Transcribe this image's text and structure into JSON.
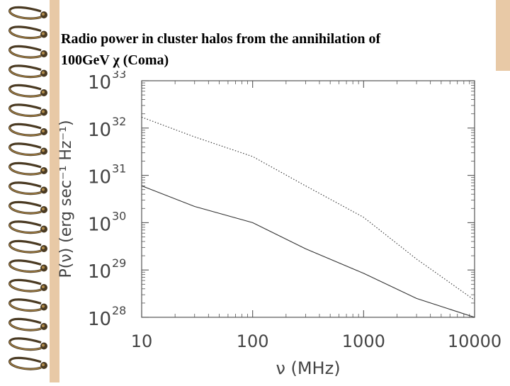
{
  "slide": {
    "title_line1": "Radio power in cluster halos from the annihilation of",
    "title_line2": "100GeV χ (Coma)"
  },
  "colors": {
    "accent_bar": "#e8c9a6",
    "coil_dark": "#4a3a22",
    "coil_light": "#b08a4a",
    "curve": "#333333"
  },
  "chart_data": {
    "type": "line",
    "x_scale": "log",
    "y_scale": "log",
    "xlim": [
      10,
      10000
    ],
    "ylim": [
      1e+28,
      1e+33
    ],
    "xlabel": "ν (MHz)",
    "ylabel": "P(ν) (erg sec⁻¹ Hz⁻¹)",
    "x_ticks": [
      {
        "value": 10,
        "label": "10"
      },
      {
        "value": 100,
        "label": "100"
      },
      {
        "value": 1000,
        "label": "1000"
      },
      {
        "value": 10000,
        "label": "10000"
      }
    ],
    "y_ticks": [
      {
        "value": 1e+28,
        "base": "10",
        "exp": "28"
      },
      {
        "value": 1e+29,
        "base": "10",
        "exp": "29"
      },
      {
        "value": 1e+30,
        "base": "10",
        "exp": "30"
      },
      {
        "value": 1e+31,
        "base": "10",
        "exp": "31"
      },
      {
        "value": 1e+32,
        "base": "10",
        "exp": "32"
      },
      {
        "value": 1e+33,
        "base": "10",
        "exp": "33"
      }
    ],
    "series": [
      {
        "style": "dotted",
        "x": [
          10,
          30,
          100,
          300,
          1000,
          3000,
          10000
        ],
        "y": [
          1.7e+32,
          6.5e+31,
          2.5e+31,
          6e+30,
          1.3e+30,
          1.7e+29,
          2.3e+28
        ]
      },
      {
        "style": "solid",
        "x": [
          10,
          30,
          100,
          300,
          1000,
          3000,
          10000
        ],
        "y": [
          6e+30,
          2.2e+30,
          1e+30,
          2.8e+29,
          8.5e+28,
          2.5e+28,
          6e+27
        ]
      }
    ]
  }
}
